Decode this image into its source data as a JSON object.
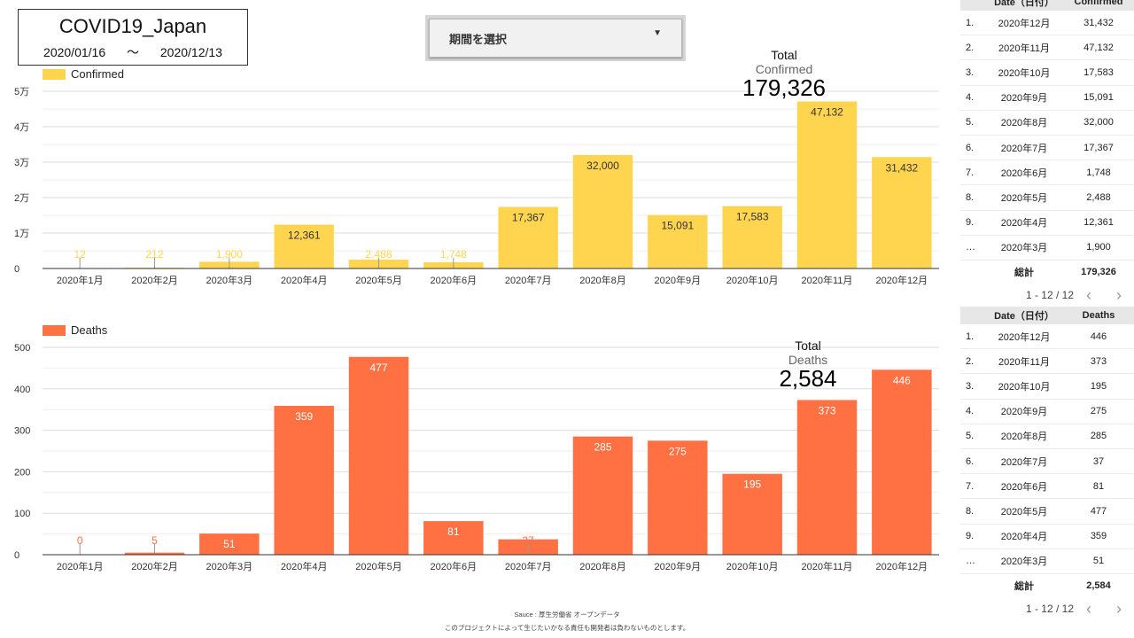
{
  "title": {
    "name": "COVID19_Japan",
    "start": "2020/01/16",
    "sep": "〜",
    "end": "2020/12/13"
  },
  "dropdown": {
    "label": "期間を選択",
    "caret": "▼"
  },
  "colors": {
    "confirmed": "#FFD54F",
    "deaths": "#FF7043"
  },
  "confirmed_total": {
    "label": "Total",
    "metric": "Confirmed",
    "value": "179,326"
  },
  "deaths_total": {
    "label": "Total",
    "metric": "Deaths",
    "value": "2,584"
  },
  "chart_data": [
    {
      "type": "bar",
      "legend": "Confirmed",
      "categories": [
        "2020年1月",
        "2020年2月",
        "2020年3月",
        "2020年4月",
        "2020年5月",
        "2020年6月",
        "2020年7月",
        "2020年8月",
        "2020年9月",
        "2020年10月",
        "2020年11月",
        "2020年12月"
      ],
      "values": [
        12,
        212,
        1900,
        12361,
        2488,
        1748,
        17367,
        32000,
        15091,
        17583,
        47132,
        31432
      ],
      "value_labels": [
        "12",
        "212",
        "1,900",
        "12,361",
        "2,488",
        "1,748",
        "17,367",
        "32,000",
        "15,091",
        "17,583",
        "47,132",
        "31,432"
      ],
      "yticks": [
        "0",
        "1万",
        "2万",
        "3万",
        "4万",
        "5万"
      ],
      "ylim": [
        0,
        50000
      ]
    },
    {
      "type": "bar",
      "legend": "Deaths",
      "categories": [
        "2020年1月",
        "2020年2月",
        "2020年3月",
        "2020年4月",
        "2020年5月",
        "2020年6月",
        "2020年7月",
        "2020年8月",
        "2020年9月",
        "2020年10月",
        "2020年11月",
        "2020年12月"
      ],
      "values": [
        0,
        5,
        51,
        359,
        477,
        81,
        37,
        285,
        275,
        195,
        373,
        446
      ],
      "value_labels": [
        "0",
        "5",
        "51",
        "359",
        "477",
        "81",
        "37",
        "285",
        "275",
        "195",
        "373",
        "446"
      ],
      "yticks": [
        "0",
        "100",
        "200",
        "300",
        "400",
        "500"
      ],
      "ylim": [
        0,
        500
      ]
    }
  ],
  "table_confirmed": {
    "headers": [
      "",
      "Date（日付）",
      "Confirmed"
    ],
    "rows": [
      {
        "idx": "1.",
        "date": "2020年12月",
        "val": "31,432"
      },
      {
        "idx": "2.",
        "date": "2020年11月",
        "val": "47,132"
      },
      {
        "idx": "3.",
        "date": "2020年10月",
        "val": "17,583"
      },
      {
        "idx": "4.",
        "date": "2020年9月",
        "val": "15,091"
      },
      {
        "idx": "5.",
        "date": "2020年8月",
        "val": "32,000"
      },
      {
        "idx": "6.",
        "date": "2020年7月",
        "val": "17,367"
      },
      {
        "idx": "7.",
        "date": "2020年6月",
        "val": "1,748"
      },
      {
        "idx": "8.",
        "date": "2020年5月",
        "val": "2,488"
      },
      {
        "idx": "9.",
        "date": "2020年4月",
        "val": "12,361"
      },
      {
        "idx": "…",
        "date": "2020年3月",
        "val": "1,900"
      }
    ],
    "total_label": "総計",
    "total_value": "179,326",
    "pager": "1 - 12 / 12",
    "prev": "‹",
    "next": "›"
  },
  "table_deaths": {
    "headers": [
      "",
      "Date（日付）",
      "Deaths"
    ],
    "rows": [
      {
        "idx": "1.",
        "date": "2020年12月",
        "val": "446"
      },
      {
        "idx": "2.",
        "date": "2020年11月",
        "val": "373"
      },
      {
        "idx": "3.",
        "date": "2020年10月",
        "val": "195"
      },
      {
        "idx": "4.",
        "date": "2020年9月",
        "val": "275"
      },
      {
        "idx": "5.",
        "date": "2020年8月",
        "val": "285"
      },
      {
        "idx": "6.",
        "date": "2020年7月",
        "val": "37"
      },
      {
        "idx": "7.",
        "date": "2020年6月",
        "val": "81"
      },
      {
        "idx": "8.",
        "date": "2020年5月",
        "val": "477"
      },
      {
        "idx": "9.",
        "date": "2020年4月",
        "val": "359"
      },
      {
        "idx": "…",
        "date": "2020年3月",
        "val": "51"
      }
    ],
    "total_label": "総計",
    "total_value": "2,584",
    "pager": "1 - 12 / 12",
    "prev": "‹",
    "next": "›"
  },
  "footer": {
    "source": "Sauce : 厚生労働省 オープンデータ",
    "disclaimer": "このプロジェクトによって生じたいかなる責任も開発者は負わないものとします。"
  }
}
